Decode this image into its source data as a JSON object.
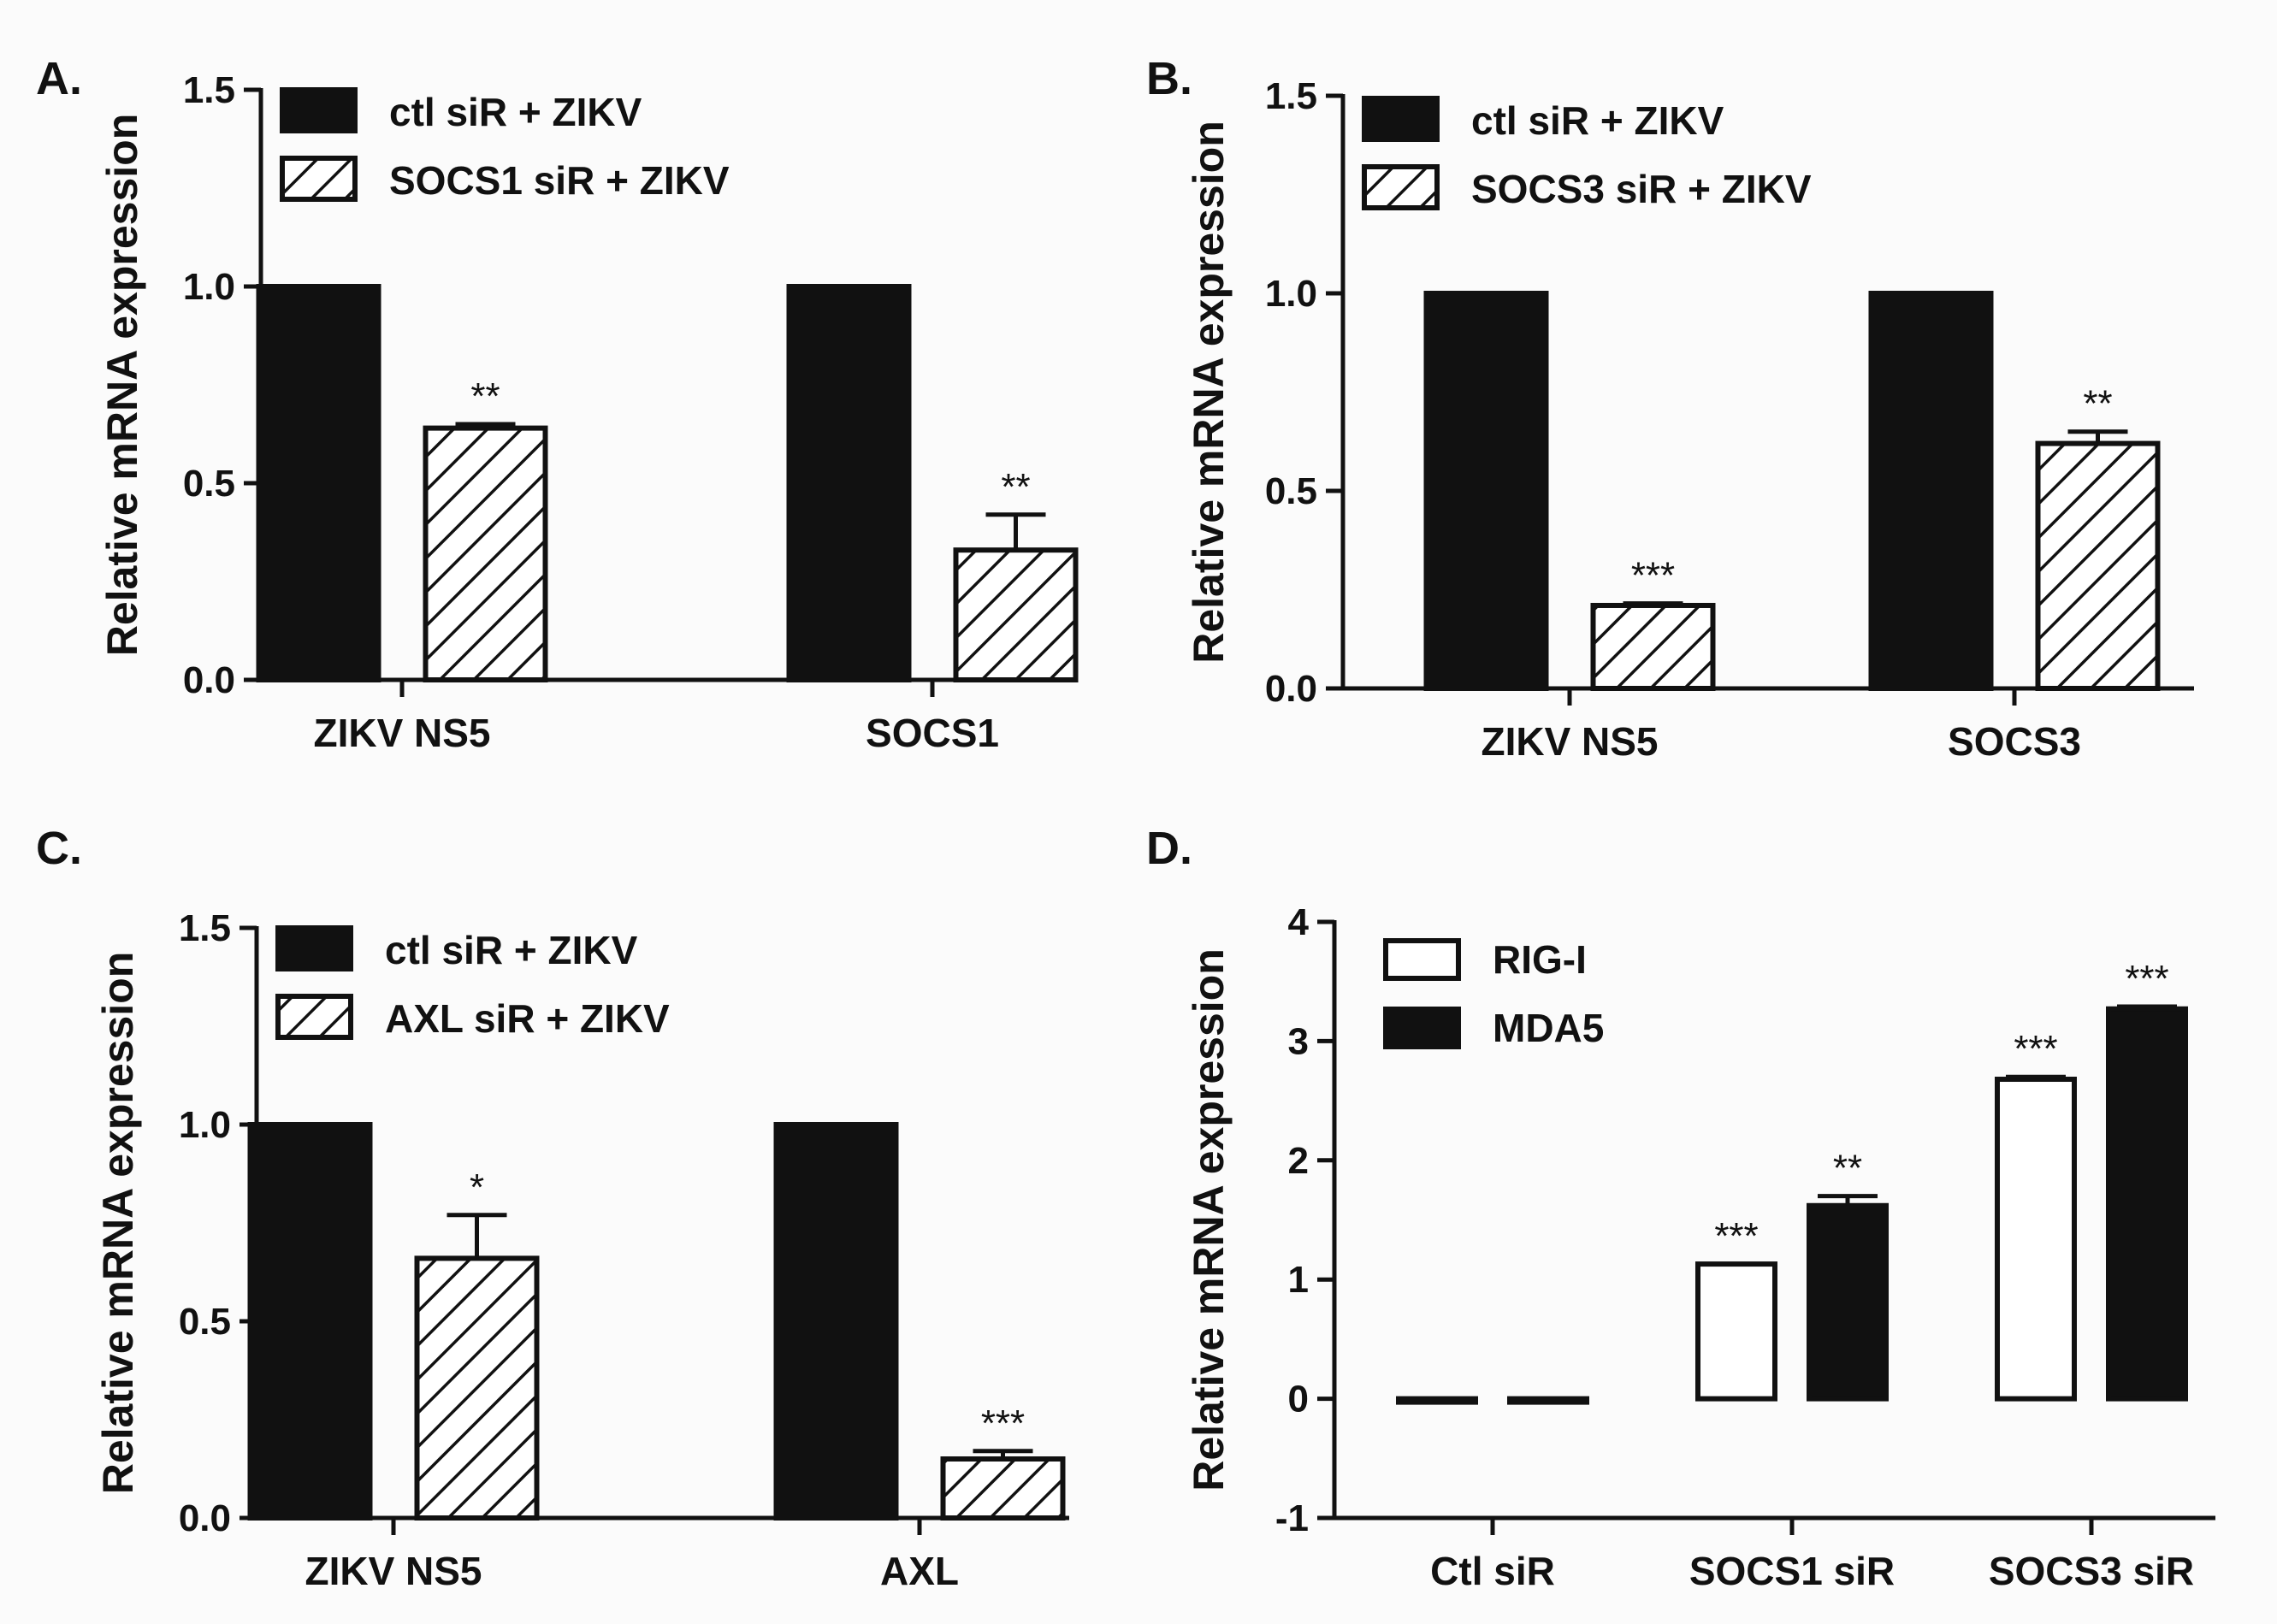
{
  "figure": {
    "background": "#fbfbfb",
    "ink": "#111111"
  },
  "chart_data": [
    {
      "panel": "A.",
      "type": "bar",
      "ylabel": "Relative mRNA expression",
      "xlabel": "",
      "ylim": [
        0.0,
        1.5
      ],
      "yticks": [
        0.0,
        0.5,
        1.0,
        1.5
      ],
      "ytick_labels": [
        "0.0",
        "0.5",
        "1.0",
        "1.5"
      ],
      "categories": [
        "ZIKV NS5",
        "SOCS1"
      ],
      "series": [
        {
          "name": "ctl siR + ZIKV",
          "style": "solid",
          "values": [
            1.0,
            1.0
          ],
          "errors": [
            0,
            0
          ],
          "sig": [
            "",
            ""
          ]
        },
        {
          "name": "SOCS1 siR + ZIKV",
          "style": "hatched",
          "values": [
            0.64,
            0.33
          ],
          "errors": [
            0.01,
            0.09
          ],
          "sig": [
            "**",
            "**"
          ]
        }
      ],
      "legend": "top-left"
    },
    {
      "panel": "B.",
      "type": "bar",
      "ylabel": "Relative mRNA expression",
      "xlabel": "",
      "ylim": [
        0.0,
        1.5
      ],
      "yticks": [
        0.0,
        0.5,
        1.0,
        1.5
      ],
      "ytick_labels": [
        "0.0",
        "0.5",
        "1.0",
        "1.5"
      ],
      "categories": [
        "ZIKV NS5",
        "SOCS3"
      ],
      "series": [
        {
          "name": "ctl siR + ZIKV",
          "style": "solid",
          "values": [
            1.0,
            1.0
          ],
          "errors": [
            0,
            0
          ],
          "sig": [
            "",
            ""
          ]
        },
        {
          "name": "SOCS3 siR + ZIKV",
          "style": "hatched",
          "values": [
            0.21,
            0.62
          ],
          "errors": [
            0.005,
            0.03
          ],
          "sig": [
            "***",
            "**"
          ]
        }
      ],
      "legend": "top-left"
    },
    {
      "panel": "C.",
      "type": "bar",
      "ylabel": "Relative mRNA expression",
      "xlabel": "",
      "ylim": [
        0.0,
        1.5
      ],
      "yticks": [
        0.0,
        0.5,
        1.0,
        1.5
      ],
      "ytick_labels": [
        "0.0",
        "0.5",
        "1.0",
        "1.5"
      ],
      "categories": [
        "ZIKV NS5",
        "AXL"
      ],
      "series": [
        {
          "name": "ctl siR + ZIKV",
          "style": "solid",
          "values": [
            1.0,
            1.0
          ],
          "errors": [
            0,
            0
          ],
          "sig": [
            "",
            ""
          ]
        },
        {
          "name": "AXL siR + ZIKV",
          "style": "hatched",
          "values": [
            0.66,
            0.15
          ],
          "errors": [
            0.11,
            0.02
          ],
          "sig": [
            "*",
            "***"
          ]
        }
      ],
      "legend": "top-left"
    },
    {
      "panel": "D.",
      "type": "bar",
      "ylabel": "Relative mRNA expression",
      "xlabel": "",
      "ylim": [
        -1,
        4
      ],
      "yticks": [
        -1,
        0,
        1,
        2,
        3,
        4
      ],
      "ytick_labels": [
        "-1",
        "0",
        "1",
        "2",
        "3",
        "4"
      ],
      "categories": [
        "Ctl siR",
        "SOCS1 siR",
        "SOCS3 siR"
      ],
      "series": [
        {
          "name": "RIG-I",
          "style": "open",
          "values": [
            0.0,
            1.13,
            2.68
          ],
          "errors": [
            0,
            0,
            0.02
          ],
          "sig": [
            "",
            "***",
            "***"
          ]
        },
        {
          "name": "MDA5",
          "style": "solid",
          "values": [
            0.0,
            1.62,
            3.27
          ],
          "errors": [
            0,
            0.08,
            0.02
          ],
          "sig": [
            "",
            "**",
            "***"
          ]
        }
      ],
      "legend": "top-left"
    }
  ]
}
